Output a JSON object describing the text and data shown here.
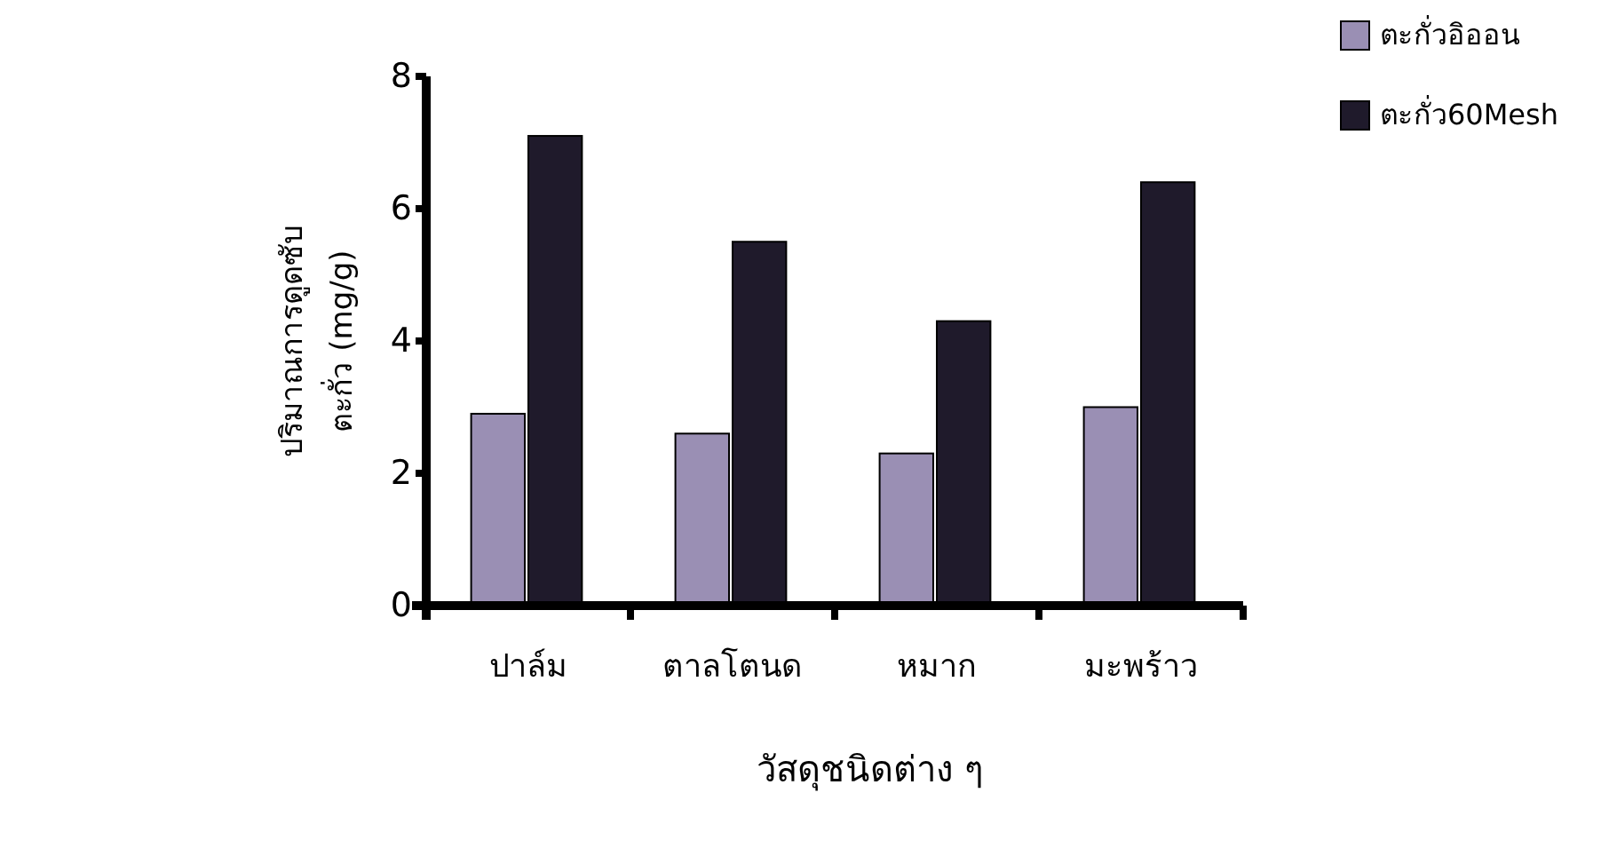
{
  "chart_data": {
    "type": "bar",
    "categories": [
      "ปาล์ม",
      "ตาลโตนด",
      "หมาก",
      "มะพร้าว"
    ],
    "series": [
      {
        "name": "ตะกั่วอิออน",
        "color": "#9a8fb4",
        "values": [
          2.9,
          2.6,
          2.3,
          3.0
        ]
      },
      {
        "name": "ตะกั่ว60Mesh",
        "color": "#1f1a2b",
        "values": [
          7.1,
          5.5,
          4.3,
          6.4
        ]
      }
    ],
    "xlabel": "วัสดุชนิดต่าง ๆ",
    "ylabel": "ปริมาณการดูดซับ\nตะกั่ว (mg/g)",
    "ylim": [
      0,
      8
    ],
    "yticks": [
      0,
      2,
      4,
      6,
      8
    ],
    "legend": "top right",
    "grid": false
  }
}
